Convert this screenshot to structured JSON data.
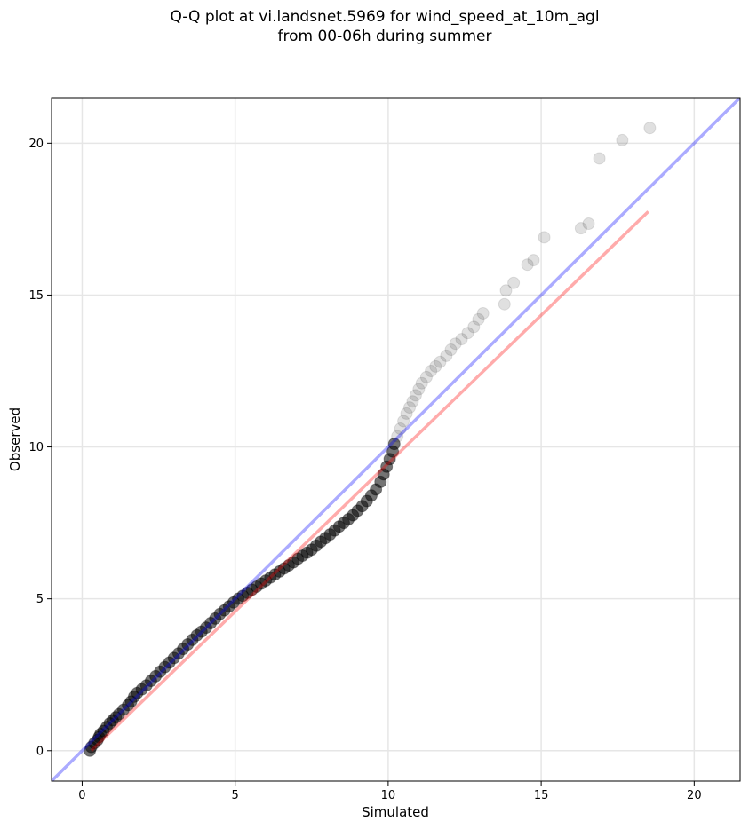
{
  "chart_data": {
    "type": "scatter",
    "title_lines": [
      "Q-Q plot at vi.landsnet.5969 for wind_speed_at_10m_agl",
      "from 00-06h during summer"
    ],
    "xlabel": "Simulated",
    "ylabel": "Observed",
    "xlim": [
      -1.0,
      21.5
    ],
    "ylim": [
      -1.0,
      21.5
    ],
    "x_ticks": [
      0,
      5,
      10,
      15,
      20
    ],
    "y_ticks": [
      0,
      5,
      10,
      15,
      20
    ],
    "x_tick_labels": [
      "0",
      "5",
      "10",
      "15",
      "20"
    ],
    "y_tick_labels": [
      "0",
      "5",
      "10",
      "15",
      "20"
    ],
    "grid": true,
    "reference_line": {
      "color": "#0000ff",
      "from": [
        -1.0,
        -1.0
      ],
      "to": [
        21.5,
        21.5
      ]
    },
    "fit_line": {
      "color": "#ff0000",
      "from": [
        0.3,
        0.0
      ],
      "to": [
        18.5,
        17.75
      ]
    },
    "points": [
      [
        0.25,
        0.0
      ],
      [
        0.3,
        0.12
      ],
      [
        0.4,
        0.25
      ],
      [
        0.5,
        0.35
      ],
      [
        0.55,
        0.45
      ],
      [
        0.6,
        0.55
      ],
      [
        0.7,
        0.65
      ],
      [
        0.8,
        0.78
      ],
      [
        0.9,
        0.9
      ],
      [
        1.0,
        1.0
      ],
      [
        1.1,
        1.1
      ],
      [
        1.2,
        1.2
      ],
      [
        1.35,
        1.35
      ],
      [
        1.5,
        1.5
      ],
      [
        1.6,
        1.62
      ],
      [
        1.7,
        1.78
      ],
      [
        1.8,
        1.9
      ],
      [
        1.95,
        2.02
      ],
      [
        2.1,
        2.15
      ],
      [
        2.25,
        2.3
      ],
      [
        2.4,
        2.45
      ],
      [
        2.55,
        2.6
      ],
      [
        2.7,
        2.75
      ],
      [
        2.85,
        2.9
      ],
      [
        3.0,
        3.05
      ],
      [
        3.15,
        3.2
      ],
      [
        3.3,
        3.35
      ],
      [
        3.45,
        3.5
      ],
      [
        3.6,
        3.65
      ],
      [
        3.75,
        3.8
      ],
      [
        3.9,
        3.92
      ],
      [
        4.05,
        4.05
      ],
      [
        4.2,
        4.2
      ],
      [
        4.35,
        4.35
      ],
      [
        4.5,
        4.5
      ],
      [
        4.65,
        4.62
      ],
      [
        4.8,
        4.75
      ],
      [
        4.95,
        4.88
      ],
      [
        5.1,
        5.0
      ],
      [
        5.25,
        5.1
      ],
      [
        5.4,
        5.2
      ],
      [
        5.55,
        5.3
      ],
      [
        5.7,
        5.4
      ],
      [
        5.85,
        5.5
      ],
      [
        6.0,
        5.6
      ],
      [
        6.15,
        5.7
      ],
      [
        6.3,
        5.8
      ],
      [
        6.45,
        5.9
      ],
      [
        6.6,
        6.0
      ],
      [
        6.75,
        6.1
      ],
      [
        6.9,
        6.2
      ],
      [
        7.05,
        6.32
      ],
      [
        7.2,
        6.42
      ],
      [
        7.35,
        6.52
      ],
      [
        7.5,
        6.62
      ],
      [
        7.65,
        6.75
      ],
      [
        7.8,
        6.88
      ],
      [
        7.95,
        7.0
      ],
      [
        8.1,
        7.12
      ],
      [
        8.25,
        7.25
      ],
      [
        8.4,
        7.38
      ],
      [
        8.55,
        7.5
      ],
      [
        8.7,
        7.62
      ],
      [
        8.85,
        7.75
      ],
      [
        9.0,
        7.9
      ],
      [
        9.15,
        8.05
      ],
      [
        9.3,
        8.22
      ],
      [
        9.45,
        8.4
      ],
      [
        9.6,
        8.6
      ],
      [
        9.75,
        8.85
      ],
      [
        9.85,
        9.1
      ],
      [
        9.95,
        9.35
      ],
      [
        10.05,
        9.6
      ],
      [
        10.15,
        9.85
      ],
      [
        10.2,
        10.1
      ],
      [
        10.3,
        10.35
      ],
      [
        10.4,
        10.6
      ],
      [
        10.5,
        10.85
      ],
      [
        10.6,
        11.1
      ],
      [
        10.7,
        11.3
      ],
      [
        10.8,
        11.5
      ],
      [
        10.9,
        11.7
      ],
      [
        11.0,
        11.9
      ],
      [
        11.1,
        12.1
      ],
      [
        11.25,
        12.3
      ],
      [
        11.4,
        12.5
      ],
      [
        11.55,
        12.65
      ],
      [
        11.7,
        12.8
      ],
      [
        11.9,
        13.0
      ],
      [
        12.05,
        13.2
      ],
      [
        12.2,
        13.4
      ],
      [
        12.4,
        13.55
      ],
      [
        12.6,
        13.75
      ],
      [
        12.8,
        13.95
      ],
      [
        12.95,
        14.2
      ],
      [
        13.1,
        14.4
      ],
      [
        13.8,
        14.7
      ],
      [
        13.85,
        15.15
      ],
      [
        14.1,
        15.4
      ],
      [
        14.55,
        16.0
      ],
      [
        14.75,
        16.15
      ],
      [
        15.1,
        16.9
      ],
      [
        16.3,
        17.2
      ],
      [
        16.55,
        17.35
      ],
      [
        16.9,
        19.5
      ],
      [
        17.65,
        20.1
      ],
      [
        18.55,
        20.5
      ]
    ]
  }
}
